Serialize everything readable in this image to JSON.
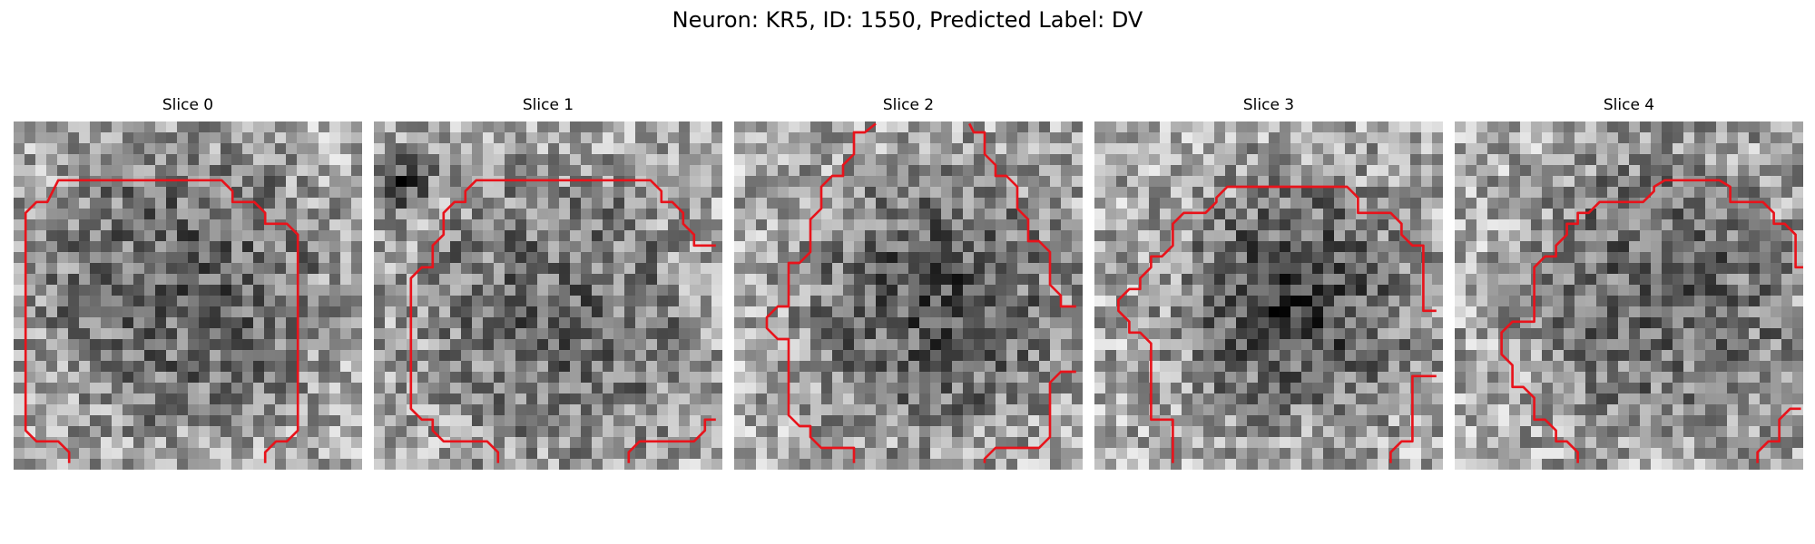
{
  "figure": {
    "title": "Neuron: KR5, ID: 1550, Predicted Label: DV",
    "panels": [
      {
        "title": "Slice 0"
      },
      {
        "title": "Slice 1"
      },
      {
        "title": "Slice 2"
      },
      {
        "title": "Slice 3"
      },
      {
        "title": "Slice 4"
      }
    ]
  },
  "colors": {
    "contour": "#e8131b",
    "background": "#ffffff"
  }
}
